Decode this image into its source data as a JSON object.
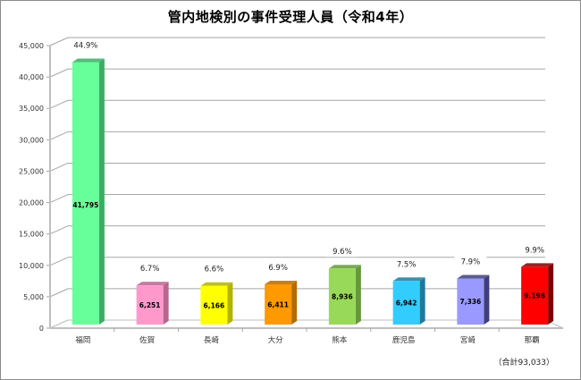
{
  "chart_data": {
    "type": "bar",
    "title": "管内地検別の事件受理人員（令和4年）",
    "xlabel": "",
    "ylabel": "",
    "ylim": [
      0,
      45000
    ],
    "yticks": [
      0,
      5000,
      10000,
      15000,
      20000,
      25000,
      30000,
      35000,
      40000,
      45000
    ],
    "ytick_labels": [
      "0",
      "5,000",
      "10,000",
      "15,000",
      "20,000",
      "25,000",
      "30,000",
      "35,000",
      "40,000",
      "45,000"
    ],
    "grid": true,
    "style": "3d-column",
    "categories": [
      "福岡",
      "佐賀",
      "長崎",
      "大分",
      "熊本",
      "鹿児島",
      "宮崎",
      "那覇"
    ],
    "values": [
      41795,
      6251,
      6166,
      6411,
      8936,
      6942,
      7336,
      9196
    ],
    "value_labels": [
      "41,795",
      "6,251",
      "6,166",
      "6,411",
      "8,936",
      "6,942",
      "7,336",
      "9,196"
    ],
    "percent_labels": [
      "44.9%",
      "6.7%",
      "6.6%",
      "6.9%",
      "9.6%",
      "7.5%",
      "7.9%",
      "9.9%"
    ],
    "colors": [
      "#66ff99",
      "#ff99cc",
      "#ffff00",
      "#ff9900",
      "#99d959",
      "#33ccff",
      "#9999ff",
      "#ff0000"
    ],
    "side_colors": [
      "#3dab66",
      "#b8668f",
      "#b3b300",
      "#b36b00",
      "#66993b",
      "#1f7a99",
      "#3f3f7a",
      "#800000"
    ],
    "annotation": "（合計93,033）"
  }
}
